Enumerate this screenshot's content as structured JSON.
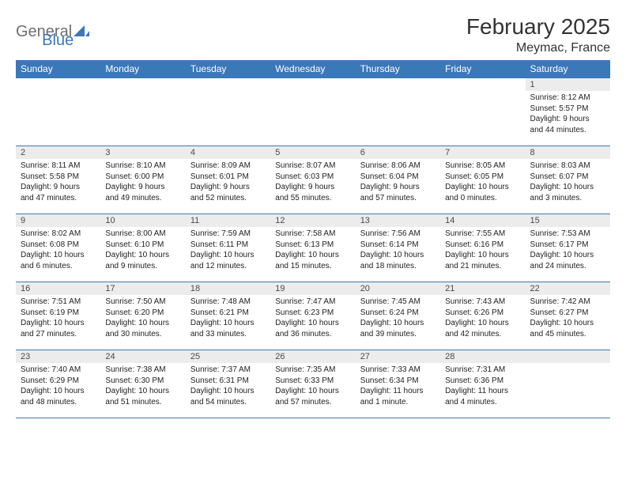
{
  "brand": {
    "part1": "General",
    "part2": "Blue"
  },
  "title": "February 2025",
  "location": "Meymac, France",
  "colors": {
    "header_bg": "#3b78b8",
    "header_text": "#ffffff",
    "daynum_bg": "#ececec",
    "rule": "#3b78b8",
    "logo_gray": "#6e6e6e",
    "logo_blue": "#3b78b8"
  },
  "weekdays": [
    "Sunday",
    "Monday",
    "Tuesday",
    "Wednesday",
    "Thursday",
    "Friday",
    "Saturday"
  ],
  "weeks": [
    [
      null,
      null,
      null,
      null,
      null,
      null,
      {
        "n": "1",
        "sunrise": "Sunrise: 8:12 AM",
        "sunset": "Sunset: 5:57 PM",
        "day1": "Daylight: 9 hours",
        "day2": "and 44 minutes."
      }
    ],
    [
      {
        "n": "2",
        "sunrise": "Sunrise: 8:11 AM",
        "sunset": "Sunset: 5:58 PM",
        "day1": "Daylight: 9 hours",
        "day2": "and 47 minutes."
      },
      {
        "n": "3",
        "sunrise": "Sunrise: 8:10 AM",
        "sunset": "Sunset: 6:00 PM",
        "day1": "Daylight: 9 hours",
        "day2": "and 49 minutes."
      },
      {
        "n": "4",
        "sunrise": "Sunrise: 8:09 AM",
        "sunset": "Sunset: 6:01 PM",
        "day1": "Daylight: 9 hours",
        "day2": "and 52 minutes."
      },
      {
        "n": "5",
        "sunrise": "Sunrise: 8:07 AM",
        "sunset": "Sunset: 6:03 PM",
        "day1": "Daylight: 9 hours",
        "day2": "and 55 minutes."
      },
      {
        "n": "6",
        "sunrise": "Sunrise: 8:06 AM",
        "sunset": "Sunset: 6:04 PM",
        "day1": "Daylight: 9 hours",
        "day2": "and 57 minutes."
      },
      {
        "n": "7",
        "sunrise": "Sunrise: 8:05 AM",
        "sunset": "Sunset: 6:05 PM",
        "day1": "Daylight: 10 hours",
        "day2": "and 0 minutes."
      },
      {
        "n": "8",
        "sunrise": "Sunrise: 8:03 AM",
        "sunset": "Sunset: 6:07 PM",
        "day1": "Daylight: 10 hours",
        "day2": "and 3 minutes."
      }
    ],
    [
      {
        "n": "9",
        "sunrise": "Sunrise: 8:02 AM",
        "sunset": "Sunset: 6:08 PM",
        "day1": "Daylight: 10 hours",
        "day2": "and 6 minutes."
      },
      {
        "n": "10",
        "sunrise": "Sunrise: 8:00 AM",
        "sunset": "Sunset: 6:10 PM",
        "day1": "Daylight: 10 hours",
        "day2": "and 9 minutes."
      },
      {
        "n": "11",
        "sunrise": "Sunrise: 7:59 AM",
        "sunset": "Sunset: 6:11 PM",
        "day1": "Daylight: 10 hours",
        "day2": "and 12 minutes."
      },
      {
        "n": "12",
        "sunrise": "Sunrise: 7:58 AM",
        "sunset": "Sunset: 6:13 PM",
        "day1": "Daylight: 10 hours",
        "day2": "and 15 minutes."
      },
      {
        "n": "13",
        "sunrise": "Sunrise: 7:56 AM",
        "sunset": "Sunset: 6:14 PM",
        "day1": "Daylight: 10 hours",
        "day2": "and 18 minutes."
      },
      {
        "n": "14",
        "sunrise": "Sunrise: 7:55 AM",
        "sunset": "Sunset: 6:16 PM",
        "day1": "Daylight: 10 hours",
        "day2": "and 21 minutes."
      },
      {
        "n": "15",
        "sunrise": "Sunrise: 7:53 AM",
        "sunset": "Sunset: 6:17 PM",
        "day1": "Daylight: 10 hours",
        "day2": "and 24 minutes."
      }
    ],
    [
      {
        "n": "16",
        "sunrise": "Sunrise: 7:51 AM",
        "sunset": "Sunset: 6:19 PM",
        "day1": "Daylight: 10 hours",
        "day2": "and 27 minutes."
      },
      {
        "n": "17",
        "sunrise": "Sunrise: 7:50 AM",
        "sunset": "Sunset: 6:20 PM",
        "day1": "Daylight: 10 hours",
        "day2": "and 30 minutes."
      },
      {
        "n": "18",
        "sunrise": "Sunrise: 7:48 AM",
        "sunset": "Sunset: 6:21 PM",
        "day1": "Daylight: 10 hours",
        "day2": "and 33 minutes."
      },
      {
        "n": "19",
        "sunrise": "Sunrise: 7:47 AM",
        "sunset": "Sunset: 6:23 PM",
        "day1": "Daylight: 10 hours",
        "day2": "and 36 minutes."
      },
      {
        "n": "20",
        "sunrise": "Sunrise: 7:45 AM",
        "sunset": "Sunset: 6:24 PM",
        "day1": "Daylight: 10 hours",
        "day2": "and 39 minutes."
      },
      {
        "n": "21",
        "sunrise": "Sunrise: 7:43 AM",
        "sunset": "Sunset: 6:26 PM",
        "day1": "Daylight: 10 hours",
        "day2": "and 42 minutes."
      },
      {
        "n": "22",
        "sunrise": "Sunrise: 7:42 AM",
        "sunset": "Sunset: 6:27 PM",
        "day1": "Daylight: 10 hours",
        "day2": "and 45 minutes."
      }
    ],
    [
      {
        "n": "23",
        "sunrise": "Sunrise: 7:40 AM",
        "sunset": "Sunset: 6:29 PM",
        "day1": "Daylight: 10 hours",
        "day2": "and 48 minutes."
      },
      {
        "n": "24",
        "sunrise": "Sunrise: 7:38 AM",
        "sunset": "Sunset: 6:30 PM",
        "day1": "Daylight: 10 hours",
        "day2": "and 51 minutes."
      },
      {
        "n": "25",
        "sunrise": "Sunrise: 7:37 AM",
        "sunset": "Sunset: 6:31 PM",
        "day1": "Daylight: 10 hours",
        "day2": "and 54 minutes."
      },
      {
        "n": "26",
        "sunrise": "Sunrise: 7:35 AM",
        "sunset": "Sunset: 6:33 PM",
        "day1": "Daylight: 10 hours",
        "day2": "and 57 minutes."
      },
      {
        "n": "27",
        "sunrise": "Sunrise: 7:33 AM",
        "sunset": "Sunset: 6:34 PM",
        "day1": "Daylight: 11 hours",
        "day2": "and 1 minute."
      },
      {
        "n": "28",
        "sunrise": "Sunrise: 7:31 AM",
        "sunset": "Sunset: 6:36 PM",
        "day1": "Daylight: 11 hours",
        "day2": "and 4 minutes."
      },
      null
    ]
  ]
}
